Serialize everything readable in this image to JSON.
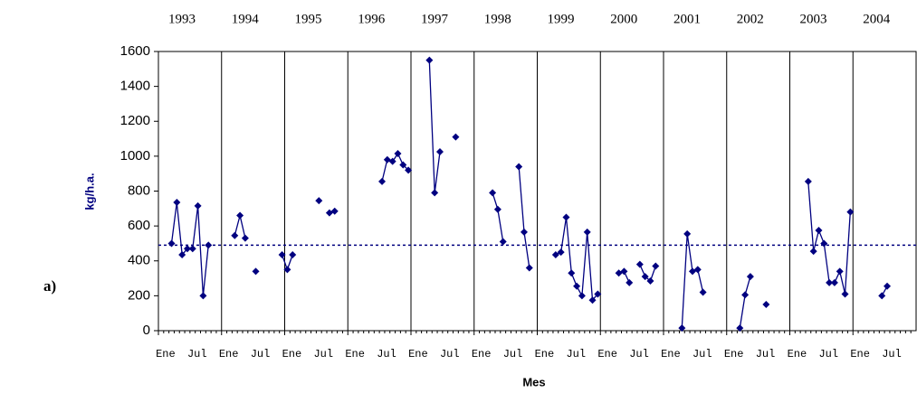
{
  "chart_data": {
    "type": "line",
    "annotation": "a)",
    "y_label": "kg/h.a.",
    "x_label": "Mes",
    "year_labels": [
      "1993",
      "1994",
      "1995",
      "1996",
      "1997",
      "1998",
      "1999",
      "2000",
      "2001",
      "2002",
      "2003",
      "2004"
    ],
    "categories": [
      "Ene",
      null,
      null,
      null,
      null,
      null,
      "Jul",
      null,
      null,
      null,
      null,
      null,
      "Ene",
      null,
      null,
      null,
      null,
      null,
      "Jul",
      null,
      null,
      null,
      null,
      null,
      "Ene",
      null,
      null,
      null,
      null,
      null,
      "Jul",
      null,
      null,
      null,
      null,
      null,
      "Ene",
      null,
      null,
      null,
      null,
      null,
      "Jul",
      null,
      null,
      null,
      null,
      null,
      "Ene",
      null,
      null,
      null,
      null,
      null,
      "Jul",
      null,
      null,
      null,
      null,
      null,
      "Ene",
      null,
      null,
      null,
      null,
      null,
      "Jul",
      null,
      null,
      null,
      null,
      null,
      "Ene",
      null,
      null,
      null,
      null,
      null,
      "Jul",
      null,
      null,
      null,
      null,
      null,
      "Ene",
      null,
      null,
      null,
      null,
      null,
      "Jul",
      null,
      null,
      null,
      null,
      null,
      "Ene",
      null,
      null,
      null,
      null,
      null,
      "Jul",
      null,
      null,
      null,
      null,
      null,
      "Ene",
      null,
      null,
      null,
      null,
      null,
      "Jul",
      null,
      null,
      null,
      null,
      null,
      "Ene",
      null,
      null,
      null,
      null,
      null,
      "Jul",
      null,
      null,
      null,
      null,
      null,
      "Ene",
      null,
      null,
      null,
      null,
      null,
      "Jul",
      null,
      null,
      null,
      null,
      null
    ],
    "values": [
      null,
      null,
      500,
      735,
      435,
      470,
      470,
      715,
      200,
      490,
      null,
      null,
      null,
      null,
      545,
      660,
      530,
      null,
      340,
      null,
      null,
      null,
      null,
      435,
      350,
      435,
      null,
      null,
      null,
      null,
      745,
      null,
      675,
      685,
      null,
      null,
      null,
      null,
      null,
      null,
      null,
      null,
      855,
      980,
      970,
      1015,
      950,
      920,
      null,
      null,
      null,
      1550,
      790,
      1025,
      null,
      null,
      1110,
      null,
      null,
      null,
      null,
      null,
      null,
      790,
      695,
      510,
      null,
      null,
      940,
      565,
      360,
      null,
      null,
      null,
      null,
      435,
      450,
      650,
      330,
      255,
      200,
      565,
      175,
      210,
      null,
      null,
      null,
      330,
      340,
      275,
      null,
      380,
      310,
      285,
      370,
      null,
      null,
      null,
      null,
      15,
      555,
      340,
      350,
      220,
      null,
      null,
      null,
      null,
      null,
      null,
      15,
      205,
      310,
      null,
      null,
      150,
      null,
      null,
      null,
      null,
      null,
      null,
      null,
      855,
      455,
      575,
      500,
      275,
      275,
      340,
      210,
      680,
      null,
      null,
      null,
      null,
      null,
      200,
      255,
      null,
      null,
      null,
      null,
      null
    ],
    "color": "#000080",
    "reference_line": 490,
    "ylim": [
      0,
      1600
    ],
    "yticks": [
      0,
      200,
      400,
      600,
      800,
      1000,
      1200,
      1400,
      1600
    ]
  }
}
